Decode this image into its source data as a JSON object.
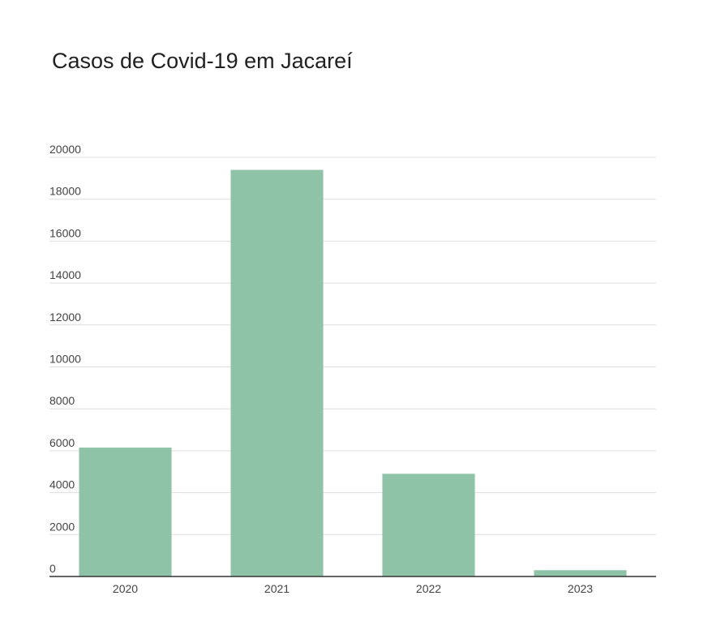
{
  "chart_data": {
    "type": "bar",
    "title": "Casos de Covid-19 em Jacareí",
    "xlabel": "",
    "ylabel": "",
    "categories": [
      "2020",
      "2021",
      "2022",
      "2023"
    ],
    "values": [
      6150,
      19400,
      4900,
      300
    ],
    "ylim": [
      0,
      20000
    ],
    "yticks": [
      "0",
      "2000",
      "4000",
      "6000",
      "8000",
      "10000",
      "12000",
      "14000",
      "16000",
      "18000",
      "20000"
    ],
    "grid": true,
    "legend": "none",
    "colors": {
      "bar": "#8fc3a7",
      "grid": "#dddddd",
      "axis": "#333333"
    }
  }
}
